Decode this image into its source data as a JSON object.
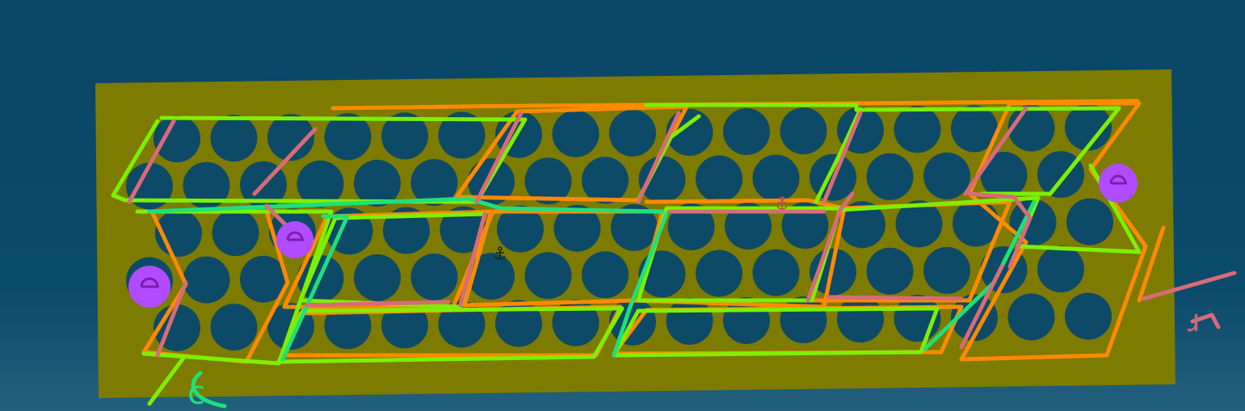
{
  "colors": {
    "board": "#7d7b00",
    "hole": "#0d4a68",
    "outline_orange": "#ff8a00",
    "outline_lime": "#7cf000",
    "outline_green": "#1ee07a",
    "outline_pink": "#d86b78",
    "marker_purple": "#b04cff",
    "annotation_pink": "#c46a78"
  },
  "icons": {
    "markers": "circle-marker",
    "anchors": "anchor-icon"
  },
  "grid": {
    "rows": 5,
    "holes_per_row": 17
  },
  "annotations": {
    "left_glyph": "c",
    "right_glyph": "ɹ"
  }
}
